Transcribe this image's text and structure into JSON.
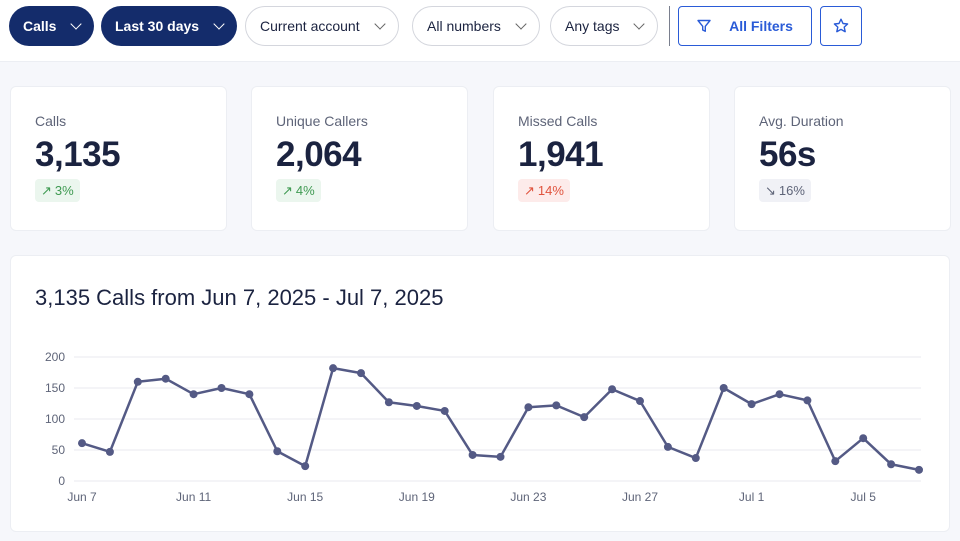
{
  "filters": {
    "type": "Calls",
    "range": "Last 30 days",
    "account": "Current account",
    "numbers": "All numbers",
    "tags": "Any tags",
    "all_filters": "All Filters"
  },
  "colors": {
    "primary": "#142c6b",
    "accent": "#2a5bd7",
    "line": "#545a85",
    "positive": "#3f9a52",
    "negative": "#e0533d"
  },
  "stats": [
    {
      "label": "Calls",
      "value": "3,135",
      "change": "3%",
      "direction": "up",
      "tone": "positive"
    },
    {
      "label": "Unique Callers",
      "value": "2,064",
      "change": "4%",
      "direction": "up",
      "tone": "positive"
    },
    {
      "label": "Missed Calls",
      "value": "1,941",
      "change": "14%",
      "direction": "up",
      "tone": "negative"
    },
    {
      "label": "Avg. Duration",
      "value": "56s",
      "change": "16%",
      "direction": "down",
      "tone": "neutral"
    }
  ],
  "chart_data": {
    "type": "line",
    "title": "3,135 Calls from Jun 7, 2025 - Jul 7, 2025",
    "x": [
      "Jun 7",
      "Jun 8",
      "Jun 9",
      "Jun 10",
      "Jun 11",
      "Jun 12",
      "Jun 13",
      "Jun 14",
      "Jun 15",
      "Jun 16",
      "Jun 17",
      "Jun 18",
      "Jun 19",
      "Jun 20",
      "Jun 21",
      "Jun 22",
      "Jun 23",
      "Jun 24",
      "Jun 25",
      "Jun 26",
      "Jun 27",
      "Jun 28",
      "Jun 29",
      "Jun 30",
      "Jul 1",
      "Jul 2",
      "Jul 3",
      "Jul 4",
      "Jul 5",
      "Jul 6",
      "Jul 7"
    ],
    "values": [
      61,
      47,
      160,
      165,
      140,
      150,
      140,
      48,
      24,
      182,
      174,
      127,
      121,
      113,
      42,
      39,
      119,
      122,
      103,
      148,
      129,
      55,
      37,
      150,
      124,
      140,
      130,
      32,
      69,
      27,
      18
    ],
    "xticks": [
      "Jun 7",
      "Jun 11",
      "Jun 15",
      "Jun 19",
      "Jun 23",
      "Jun 27",
      "Jul 1",
      "Jul 5"
    ],
    "yticks": [
      0,
      50,
      100,
      150,
      200
    ],
    "ylim": [
      0,
      200
    ],
    "grid": true
  }
}
